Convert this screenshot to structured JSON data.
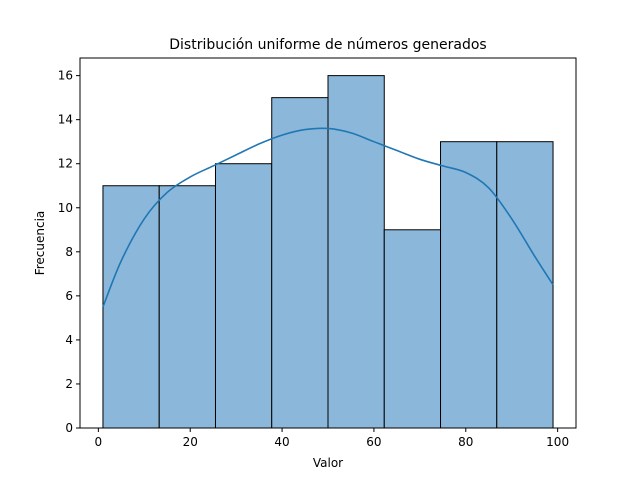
{
  "chart_data": {
    "type": "bar",
    "title": "Distribución uniforme de números generados",
    "xlabel": "Valor",
    "ylabel": "Frecuencia",
    "xlim": [
      -4.0,
      104.0
    ],
    "ylim": [
      0,
      16.8
    ],
    "x_ticks": [
      0,
      20,
      40,
      60,
      80,
      100
    ],
    "y_ticks": [
      0,
      2,
      4,
      6,
      8,
      10,
      12,
      14,
      16
    ],
    "bins": [
      {
        "start": 1.0,
        "end": 13.25,
        "count": 11
      },
      {
        "start": 13.25,
        "end": 25.5,
        "count": 11
      },
      {
        "start": 25.5,
        "end": 37.75,
        "count": 12
      },
      {
        "start": 37.75,
        "end": 50.0,
        "count": 15
      },
      {
        "start": 50.0,
        "end": 62.25,
        "count": 16
      },
      {
        "start": 62.25,
        "end": 74.5,
        "count": 9
      },
      {
        "start": 74.5,
        "end": 86.75,
        "count": 13
      },
      {
        "start": 86.75,
        "end": 99.0,
        "count": 13
      }
    ],
    "kde": {
      "x": [
        1,
        5,
        10,
        15,
        20,
        25,
        30,
        35,
        40,
        45,
        50,
        55,
        60,
        65,
        70,
        75,
        80,
        85,
        90,
        95,
        99
      ],
      "y": [
        5.5,
        7.6,
        9.5,
        10.7,
        11.4,
        11.9,
        12.4,
        12.9,
        13.3,
        13.55,
        13.6,
        13.4,
        13.0,
        12.6,
        12.2,
        11.9,
        11.6,
        10.9,
        9.5,
        7.8,
        6.5
      ]
    },
    "grid": false,
    "colors": {
      "bar_fill": "#8bb8da",
      "bar_edge": "#000000",
      "kde_line": "#1f77b4"
    }
  }
}
